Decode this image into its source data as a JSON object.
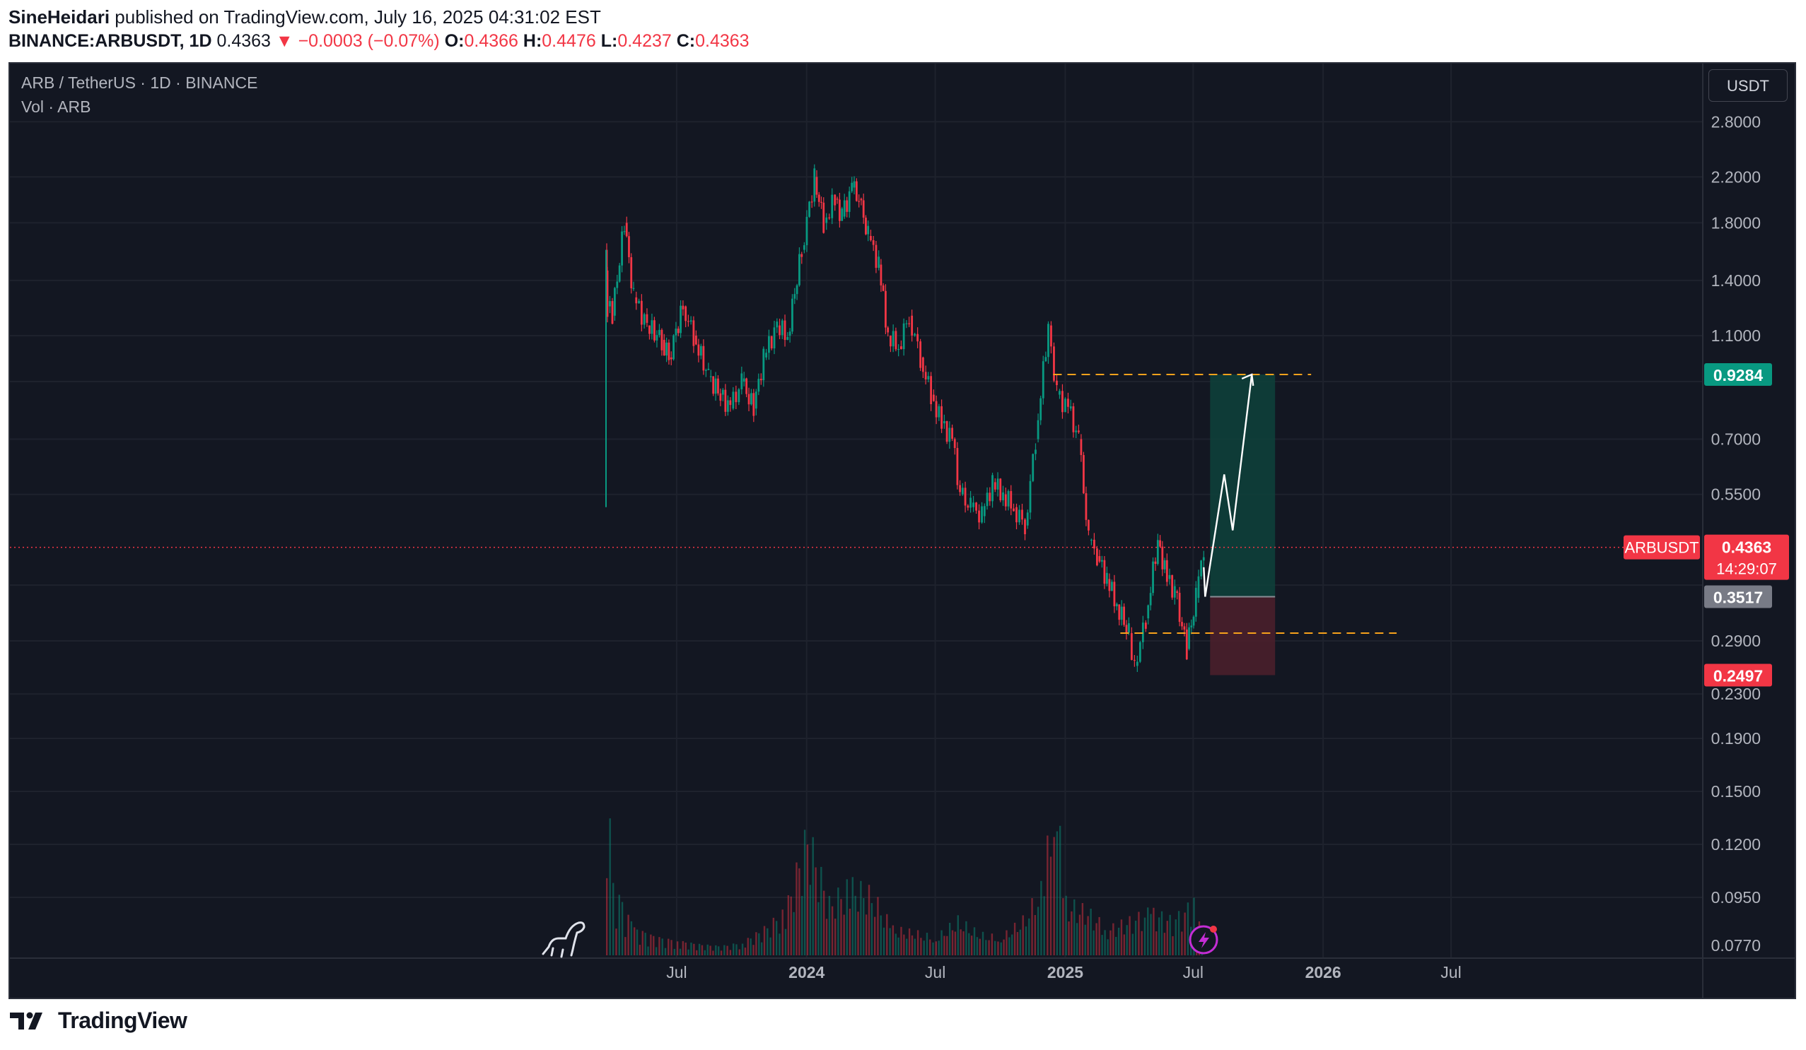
{
  "header": {
    "author": "SineHeidari",
    "published_text": "published on TradingView.com, July 16, 2025 04:31:02 EST",
    "symbol": "BINANCE:ARBUSDT, 1D",
    "last": "0.4363",
    "change": "▼ −0.0003 (−0.07%)",
    "o_label": "O:",
    "o_value": "0.4366",
    "h_label": "H:",
    "h_value": "0.4476",
    "l_label": "L:",
    "l_value": "0.4237",
    "c_label": "C:",
    "c_value": "0.4363"
  },
  "legend": {
    "title": "ARB / TetherUS · 1D · BINANCE",
    "volume": "Vol · ARB"
  },
  "currency_button": "USDT",
  "footer": {
    "brand": "TradingView"
  },
  "colors": {
    "background": "#131722",
    "up": "#089981",
    "down": "#f23645",
    "target_zone": "#0e3f3a",
    "stop_zone": "#4a1f2b",
    "dashed": "#f7a21b",
    "projection": "#ffffff"
  },
  "chart_data": {
    "type": "candlestick",
    "symbol": "ARBUSDT",
    "scale": "log",
    "x_ticks": [
      "Jul",
      "2024",
      "Jul",
      "2025",
      "Jul",
      "2026",
      "Jul"
    ],
    "y_ticks": [
      "2.8000",
      "2.2000",
      "1.8000",
      "1.4000",
      "1.1000",
      "0.7000",
      "0.5500",
      "0.2900",
      "0.2300",
      "0.1900",
      "0.1500",
      "0.1200",
      "0.0950",
      "0.0770"
    ],
    "price_series": [
      [
        "2023-03-23",
        1.6
      ],
      [
        "2023-03-25",
        1.25
      ],
      [
        "2023-04-01",
        1.2
      ],
      [
        "2023-04-18",
        1.8
      ],
      [
        "2023-05-01",
        1.3
      ],
      [
        "2023-05-20",
        1.15
      ],
      [
        "2023-06-10",
        1.08
      ],
      [
        "2023-06-20",
        1.0
      ],
      [
        "2023-07-10",
        1.25
      ],
      [
        "2023-07-25",
        1.1
      ],
      [
        "2023-08-15",
        0.92
      ],
      [
        "2023-09-01",
        0.85
      ],
      [
        "2023-09-15",
        0.8
      ],
      [
        "2023-10-01",
        0.9
      ],
      [
        "2023-10-18",
        0.8
      ],
      [
        "2023-11-01",
        1.0
      ],
      [
        "2023-11-20",
        1.15
      ],
      [
        "2023-12-05",
        1.1
      ],
      [
        "2023-12-25",
        1.6
      ],
      [
        "2024-01-12",
        2.2
      ],
      [
        "2024-01-25",
        1.8
      ],
      [
        "2024-02-10",
        2.0
      ],
      [
        "2024-02-20",
        1.85
      ],
      [
        "2024-03-05",
        2.1
      ],
      [
        "2024-03-15",
        2.0
      ],
      [
        "2024-03-28",
        1.7
      ],
      [
        "2024-04-12",
        1.5
      ],
      [
        "2024-04-25",
        1.1
      ],
      [
        "2024-05-10",
        1.05
      ],
      [
        "2024-05-25",
        1.2
      ],
      [
        "2024-06-10",
        1.0
      ],
      [
        "2024-06-25",
        0.85
      ],
      [
        "2024-07-10",
        0.75
      ],
      [
        "2024-07-25",
        0.7
      ],
      [
        "2024-08-05",
        0.55
      ],
      [
        "2024-08-20",
        0.52
      ],
      [
        "2024-09-05",
        0.5
      ],
      [
        "2024-09-20",
        0.58
      ],
      [
        "2024-10-05",
        0.55
      ],
      [
        "2024-10-20",
        0.52
      ],
      [
        "2024-11-05",
        0.48
      ],
      [
        "2024-11-20",
        0.7
      ],
      [
        "2024-12-08",
        1.15
      ],
      [
        "2024-12-20",
        0.85
      ],
      [
        "2025-01-05",
        0.8
      ],
      [
        "2025-01-20",
        0.7
      ],
      [
        "2025-02-03",
        0.45
      ],
      [
        "2025-02-15",
        0.42
      ],
      [
        "2025-03-01",
        0.38
      ],
      [
        "2025-03-15",
        0.34
      ],
      [
        "2025-04-01",
        0.3
      ],
      [
        "2025-04-09",
        0.26
      ],
      [
        "2025-04-25",
        0.32
      ],
      [
        "2025-05-12",
        0.45
      ],
      [
        "2025-05-25",
        0.38
      ],
      [
        "2025-06-05",
        0.36
      ],
      [
        "2025-06-22",
        0.28
      ],
      [
        "2025-07-05",
        0.35
      ],
      [
        "2025-07-16",
        0.4363
      ]
    ],
    "last_price": 0.4363,
    "last_price_label": "ARBUSDT",
    "last_price_text": "0.4363",
    "countdown": "14:29:07",
    "position": {
      "entry": 0.3517,
      "target": 0.9284,
      "stop": 0.2497,
      "entry_text": "0.3517",
      "target_text": "0.9284",
      "stop_text": "0.2497",
      "start": "2025-07-25",
      "end": "2025-10-25"
    },
    "levels": [
      {
        "price": 0.9284,
        "from": "2024-12-15",
        "to": "2025-12-15"
      },
      {
        "price": 0.3,
        "from": "2025-03-20",
        "to": "2026-04-15"
      }
    ],
    "projection": [
      [
        "2025-07-18",
        0.3517
      ],
      [
        "2025-08-14",
        0.6
      ],
      [
        "2025-08-26",
        0.47
      ],
      [
        "2025-09-22",
        0.9284
      ]
    ],
    "volume_series": [
      [
        "2023-03-23",
        0.19
      ],
      [
        "2023-04-01",
        0.12
      ],
      [
        "2023-05-01",
        0.095
      ],
      [
        "2023-06-01",
        0.09
      ],
      [
        "2023-07-01",
        0.088
      ],
      [
        "2023-08-01",
        0.086
      ],
      [
        "2023-09-01",
        0.085
      ],
      [
        "2023-10-01",
        0.087
      ],
      [
        "2023-11-01",
        0.095
      ],
      [
        "2023-12-01",
        0.105
      ],
      [
        "2024-01-01",
        0.15
      ],
      [
        "2024-02-01",
        0.11
      ],
      [
        "2024-03-01",
        0.12
      ],
      [
        "2024-04-01",
        0.115
      ],
      [
        "2024-05-01",
        0.095
      ],
      [
        "2024-06-01",
        0.093
      ],
      [
        "2024-07-01",
        0.09
      ],
      [
        "2024-08-01",
        0.1
      ],
      [
        "2024-09-01",
        0.092
      ],
      [
        "2024-10-01",
        0.09
      ],
      [
        "2024-11-01",
        0.1
      ],
      [
        "2024-12-01",
        0.12
      ],
      [
        "2024-12-15",
        0.18
      ],
      [
        "2025-01-01",
        0.11
      ],
      [
        "2025-02-01",
        0.105
      ],
      [
        "2025-03-01",
        0.095
      ],
      [
        "2025-04-01",
        0.1
      ],
      [
        "2025-05-01",
        0.105
      ],
      [
        "2025-06-01",
        0.1
      ],
      [
        "2025-07-01",
        0.11
      ],
      [
        "2025-07-16",
        0.09
      ]
    ]
  }
}
